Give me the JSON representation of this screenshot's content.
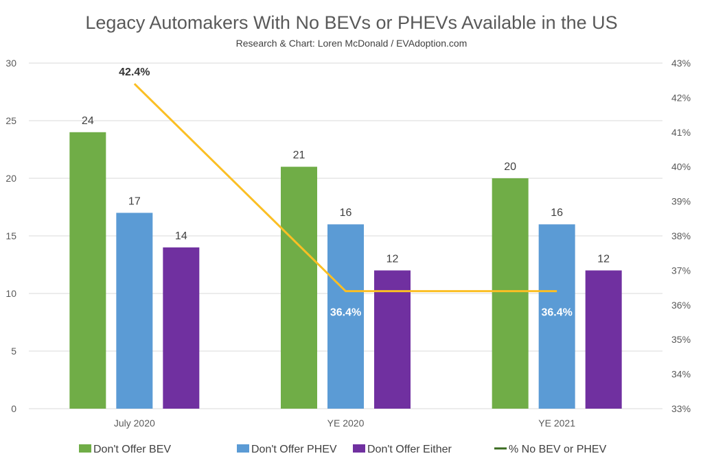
{
  "chart_data": {
    "type": "bar",
    "title": "Legacy Automakers With No BEVs or PHEVs Available in the US",
    "subtitle": "Research & Chart: Loren McDonald / EVAdoption.com",
    "categories": [
      "July 2020",
      "YE 2020",
      "YE 2021"
    ],
    "series": [
      {
        "name": "Don't Offer BEV",
        "type": "bar",
        "axis": "left",
        "color": "#70ad47",
        "values": [
          24,
          21,
          20
        ]
      },
      {
        "name": "Don't Offer PHEV",
        "type": "bar",
        "axis": "left",
        "color": "#5b9bd5",
        "values": [
          17,
          16,
          16
        ]
      },
      {
        "name": "Don't Offer Either",
        "type": "bar",
        "axis": "left",
        "color": "#7030a0",
        "values": [
          14,
          12,
          12
        ]
      },
      {
        "name": "% No BEV or PHEV",
        "type": "line",
        "axis": "right",
        "color": "#fbbf24",
        "legend_color": "#3a6b1f",
        "values": [
          42.4,
          36.4,
          36.4
        ],
        "labels": [
          "42.4%",
          "36.4%",
          "36.4%"
        ]
      }
    ],
    "y_left": {
      "range": [
        0,
        30
      ],
      "ticks": [
        "0",
        "5",
        "10",
        "15",
        "20",
        "25",
        "30"
      ]
    },
    "y_right": {
      "range": [
        33,
        43
      ],
      "ticks": [
        "33%",
        "34%",
        "35%",
        "36%",
        "37%",
        "38%",
        "39%",
        "40%",
        "41%",
        "42%",
        "43%"
      ]
    },
    "grid": true,
    "legend": "bottom"
  }
}
